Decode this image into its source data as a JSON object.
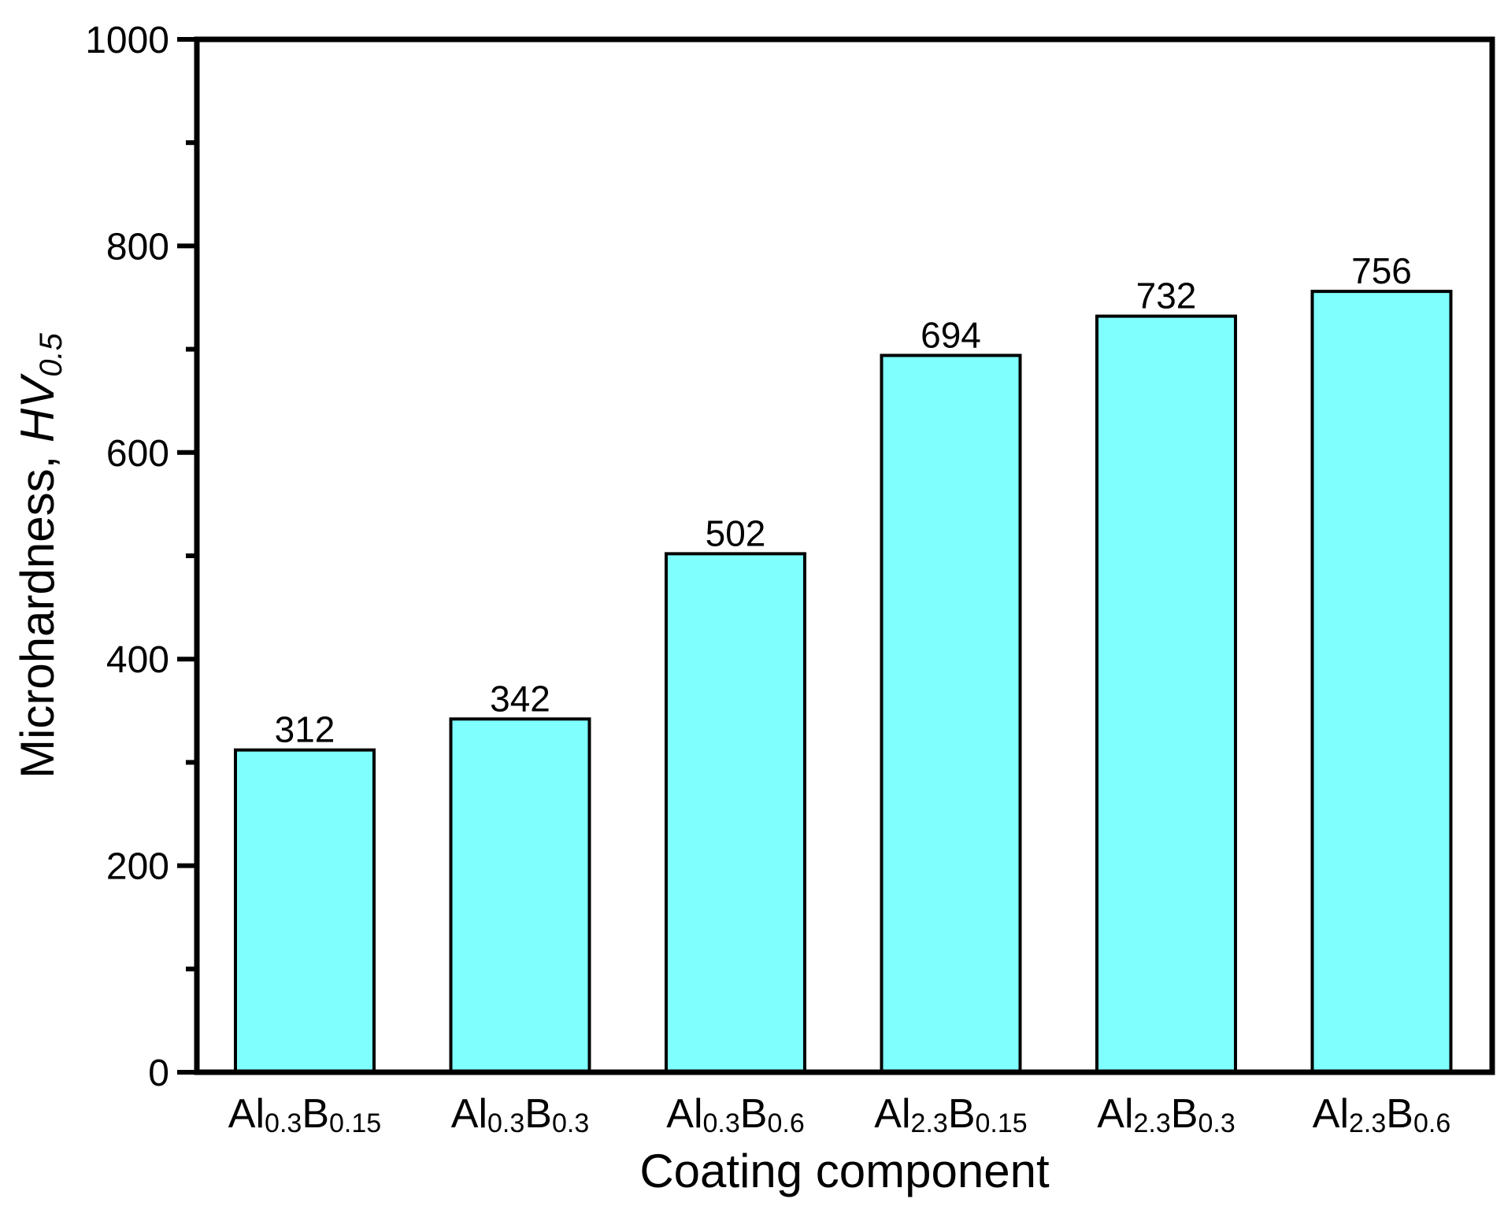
{
  "chart_data": {
    "type": "bar",
    "categories": [
      {
        "label": "Al0.3B0.15",
        "parts": [
          {
            "t": "Al",
            "sub": false
          },
          {
            "t": "0.3",
            "sub": true
          },
          {
            "t": "B",
            "sub": false
          },
          {
            "t": "0.15",
            "sub": true
          }
        ]
      },
      {
        "label": "Al0.3B0.3",
        "parts": [
          {
            "t": "Al",
            "sub": false
          },
          {
            "t": "0.3",
            "sub": true
          },
          {
            "t": "B",
            "sub": false
          },
          {
            "t": "0.3",
            "sub": true
          }
        ]
      },
      {
        "label": "Al0.3B0.6",
        "parts": [
          {
            "t": "Al",
            "sub": false
          },
          {
            "t": "0.3",
            "sub": true
          },
          {
            "t": "B",
            "sub": false
          },
          {
            "t": "0.6",
            "sub": true
          }
        ]
      },
      {
        "label": "Al2.3B0.15",
        "parts": [
          {
            "t": "Al",
            "sub": false
          },
          {
            "t": "2.3",
            "sub": true
          },
          {
            "t": "B",
            "sub": false
          },
          {
            "t": "0.15",
            "sub": true
          }
        ]
      },
      {
        "label": "Al2.3B0.3",
        "parts": [
          {
            "t": "Al",
            "sub": false
          },
          {
            "t": "2.3",
            "sub": true
          },
          {
            "t": "B",
            "sub": false
          },
          {
            "t": "0.3",
            "sub": true
          }
        ]
      },
      {
        "label": "Al2.3B0.6",
        "parts": [
          {
            "t": "Al",
            "sub": false
          },
          {
            "t": "2.3",
            "sub": true
          },
          {
            "t": "B",
            "sub": false
          },
          {
            "t": "0.6",
            "sub": true
          }
        ]
      }
    ],
    "values": [
      312,
      342,
      502,
      694,
      732,
      756
    ],
    "data_labels": [
      "312",
      "342",
      "502",
      "694",
      "732",
      "756"
    ],
    "xlabel": "Coating component",
    "ylabel": {
      "text": "Microhardness, ",
      "italic_text": "HV",
      "italic_sub": "0.5"
    },
    "ylim": [
      0,
      1000
    ],
    "yticks": [
      0,
      200,
      400,
      600,
      800,
      1000
    ],
    "ytick_labels": [
      "0",
      "200",
      "400",
      "600",
      "800",
      "1000"
    ],
    "minor_yticks": [
      100,
      300,
      500,
      700,
      900
    ],
    "grid": false,
    "bar_color": "#80FFFF",
    "edge_color": "#000000"
  }
}
